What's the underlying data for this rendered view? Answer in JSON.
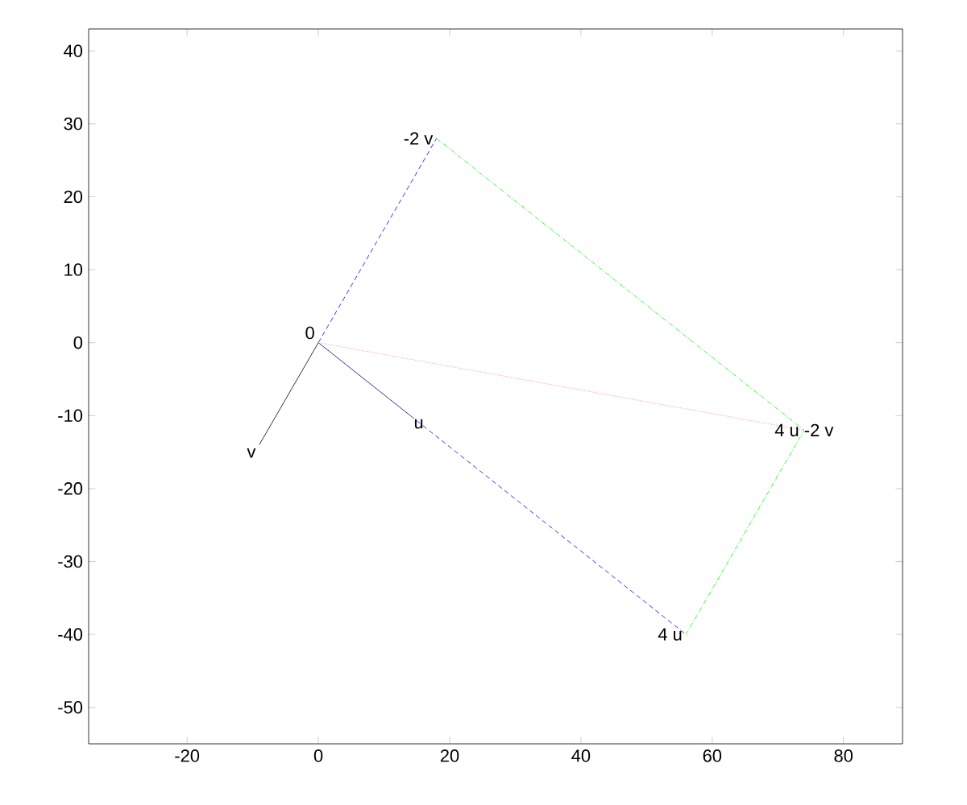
{
  "chart_data": {
    "type": "line",
    "xlim": [
      -35,
      89
    ],
    "ylim": [
      -55,
      43
    ],
    "xticks": [
      -20,
      0,
      20,
      40,
      60,
      80
    ],
    "yticks": [
      -50,
      -40,
      -30,
      -20,
      -10,
      0,
      10,
      20,
      30,
      40
    ],
    "grid": false,
    "marker": "none",
    "series": [
      {
        "color": "#000080",
        "line_style": "solid",
        "x": [
          0,
          14
        ],
        "values": [
          0,
          -10
        ]
      },
      {
        "color": "#000000",
        "line_style": "solid",
        "x": [
          0,
          -9
        ],
        "values": [
          0,
          -14
        ]
      },
      {
        "color": "#0000ff",
        "line_style": "dashed",
        "x": [
          0,
          18
        ],
        "values": [
          0,
          28
        ]
      },
      {
        "color": "#0000ff",
        "line_style": "dashed",
        "x": [
          14,
          56
        ],
        "values": [
          -10,
          -40
        ]
      },
      {
        "color": "#00ff00",
        "line_style": "dashdot",
        "x": [
          18,
          74,
          56
        ],
        "values": [
          28,
          -12,
          -40
        ]
      },
      {
        "color": "#ff9999",
        "line_style": "dotted",
        "x": [
          0,
          74
        ],
        "values": [
          0,
          -12
        ]
      }
    ],
    "annotations": [
      {
        "text": "0",
        "x": 0,
        "y": 0
      },
      {
        "text": "u",
        "x": 14,
        "y": -10
      },
      {
        "text": "v",
        "x": -9,
        "y": -14
      },
      {
        "text": "4 u",
        "x": 56,
        "y": -40
      },
      {
        "text": "-2 v",
        "x": 18,
        "y": 28
      },
      {
        "text": "4 u -2 v",
        "x": 74,
        "y": -12
      }
    ]
  }
}
